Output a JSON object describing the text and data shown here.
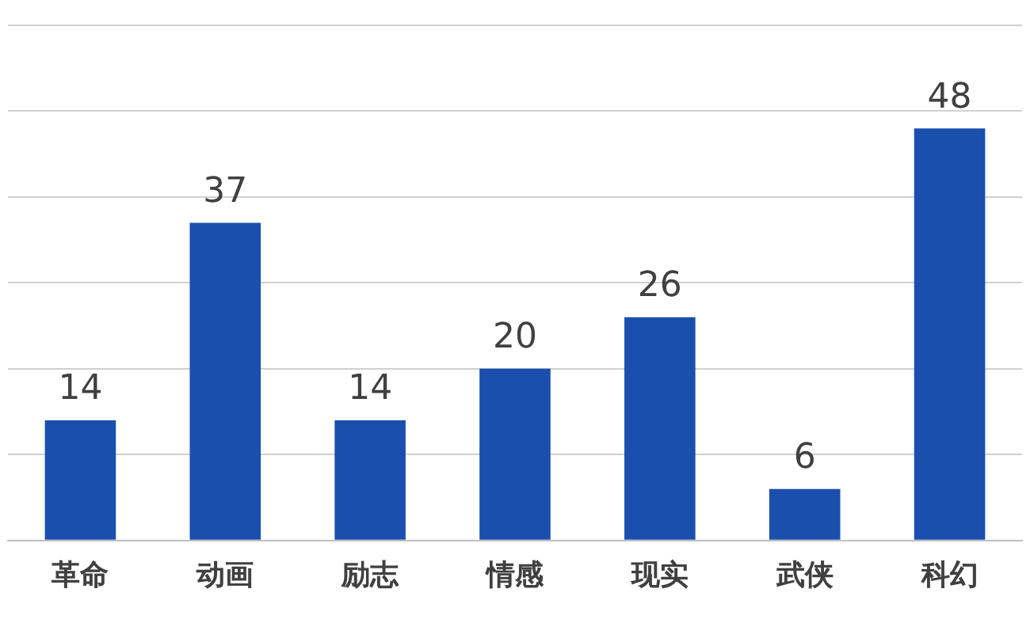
{
  "chart_data": {
    "type": "bar",
    "categories": [
      "革命",
      "动画",
      "励志",
      "情感",
      "现实",
      "武侠",
      "科幻"
    ],
    "values": [
      14,
      37,
      14,
      20,
      26,
      6,
      48
    ],
    "color": "#1a4fad",
    "ylim": [
      0,
      60
    ],
    "grid": "y",
    "tick_labels": "x",
    "data_labels": true
  }
}
